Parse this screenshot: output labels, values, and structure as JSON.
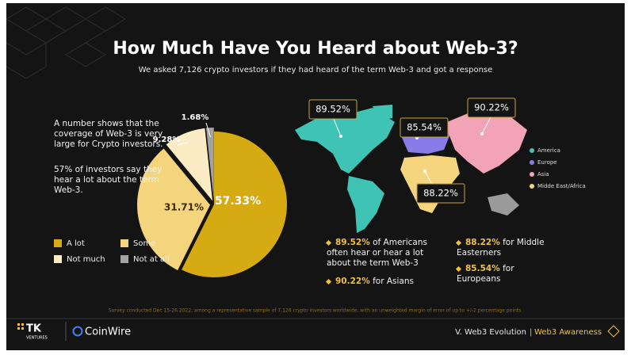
{
  "chart_data": [
    {
      "type": "pie",
      "title": "How Much Have You Heard about Web-3?",
      "subtitle": "We asked 7,126 crypto investors if they had heard of the term Web-3 and got a response",
      "categories": [
        "A lot",
        "Some",
        "Not much",
        "Not at all"
      ],
      "values": [
        57.33,
        31.71,
        9.28,
        1.68
      ],
      "value_labels": [
        "57.33%",
        "31.71%",
        "9.28%",
        "1.68%"
      ],
      "colors": [
        "#d6aa12",
        "#f4d47c",
        "#fcecc6",
        "#a3a3a3"
      ]
    },
    {
      "type": "map",
      "categories": [
        "America",
        "Europe",
        "Asia",
        "Midde East/Africa"
      ],
      "values": [
        89.52,
        85.54,
        90.22,
        88.22
      ],
      "value_labels": [
        "89.52%",
        "85.54%",
        "90.22%",
        "88.22%"
      ],
      "colors": [
        "#3fc3b5",
        "#8a7ce8",
        "#f2a3b8",
        "#f4d47c"
      ]
    }
  ],
  "notes": [
    "A number shows that the coverage of Web-3 is very large for Crypto investors.",
    "57% of investors say they hear a lot about the term Web-3."
  ],
  "highlights": [
    {
      "value": "89.52%",
      "text": " of Americans often hear or hear a lot about the term Web-3"
    },
    {
      "value": "90.22%",
      "text": " for Asians"
    },
    {
      "value": "88.22%",
      "text": " for Middle Easterners"
    },
    {
      "value": "85.54%",
      "text": " for Europeans"
    }
  ],
  "footnote": "Survey conducted Dec 15-26 2022, among a representative sample of 7,126 crypto investors worldwide, with an unweighted margin of error of up to +/-2 percentage points.",
  "footer": {
    "brand1": "TK",
    "brand1_sub": "VENTURES",
    "brand2": "CoinWire",
    "section": "V. Web3 Evolution",
    "topic": "Web3 Awareness"
  }
}
